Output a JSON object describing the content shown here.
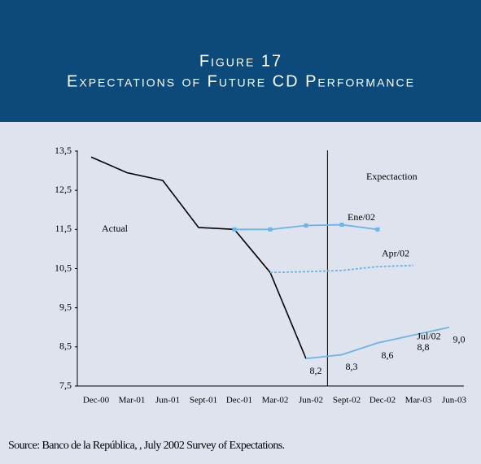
{
  "chart_data": {
    "type": "line",
    "title": "Figure 17",
    "subtitle": "Expectations of Future CD Performance",
    "categories": [
      "Dec-00",
      "Mar-01",
      "Jun-01",
      "Sept-01",
      "Dec-01",
      "Mar-02",
      "Jun-02",
      "Sept-02",
      "Dec-02",
      "Mar-03",
      "Jun-03"
    ],
    "series": [
      {
        "name": null,
        "color": "#000000",
        "line_style": "solid",
        "values": [
          13.35,
          12.95,
          12.75,
          11.55,
          11.5,
          10.4,
          8.2,
          null,
          null,
          null,
          null
        ]
      },
      {
        "name": "Ene/02",
        "color": "#6ab4e6",
        "line_style": "solid",
        "marker": "square",
        "values": [
          null,
          null,
          null,
          null,
          11.5,
          11.5,
          11.6,
          11.62,
          11.5,
          null,
          null
        ]
      },
      {
        "name": "Apr/02",
        "color": "#6ab4e6",
        "line_style": "dotted",
        "values": [
          null,
          null,
          null,
          null,
          null,
          10.4,
          10.42,
          10.45,
          10.55,
          10.58,
          null
        ]
      },
      {
        "name": "Jul/02",
        "color": "#6ab4e6",
        "line_style": "solid",
        "values": [
          null,
          null,
          null,
          null,
          null,
          null,
          8.2,
          8.3,
          8.6,
          8.8,
          9.0
        ],
        "value_labels": [
          null,
          null,
          null,
          null,
          null,
          null,
          "8,2",
          "8,3",
          "8,6",
          "8,8",
          "9,0"
        ]
      }
    ],
    "ylim": [
      7.5,
      13.5
    ],
    "yticks": [
      {
        "value": 7.5,
        "label": "7,5"
      },
      {
        "value": 8.5,
        "label": "8,5"
      },
      {
        "value": 9.5,
        "label": "9,5"
      },
      {
        "value": 10.5,
        "label": "10,5"
      },
      {
        "value": 11.5,
        "label": "11,5"
      },
      {
        "value": 12.5,
        "label": "12,5"
      },
      {
        "value": 13.5,
        "label": "13,5"
      }
    ],
    "annotations": [
      "Actual",
      "Expectaction"
    ],
    "source": "Source: Banco de la República, , July 2002 Survey of Expectations."
  }
}
